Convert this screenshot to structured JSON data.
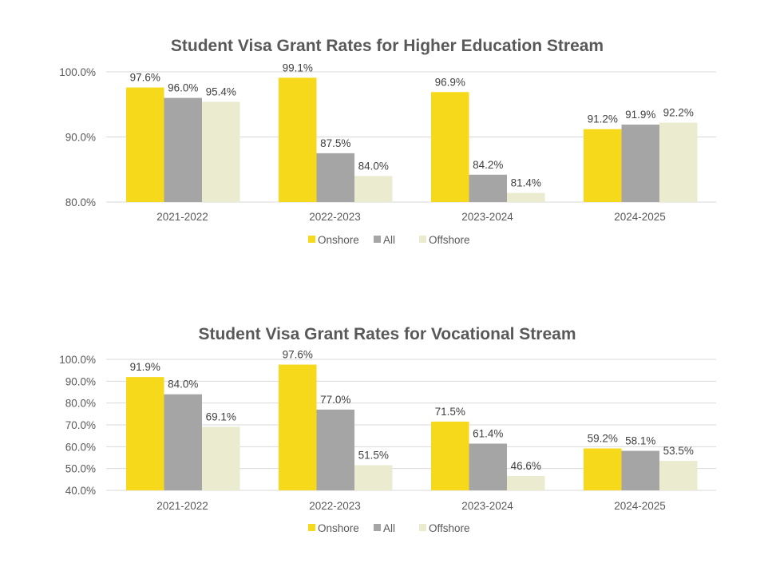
{
  "colors": {
    "Onshore": "#F7D91B",
    "All": "#A5A5A5",
    "Offshore": "#EBEBD0",
    "grid": "#D9D9D9",
    "text": "#595959"
  },
  "chart_data": [
    {
      "type": "bar",
      "title": "Student Visa Grant Rates for Higher Education Stream",
      "categories": [
        "2021-2022",
        "2022-2023",
        "2023-2024",
        "2024-2025"
      ],
      "series": [
        {
          "name": "Onshore",
          "values": [
            97.6,
            99.1,
            96.9,
            91.2
          ]
        },
        {
          "name": "All",
          "values": [
            96.0,
            87.5,
            84.2,
            91.9
          ]
        },
        {
          "name": "Offshore",
          "values": [
            95.4,
            84.0,
            81.4,
            92.2
          ]
        }
      ],
      "ylim": [
        80,
        100
      ],
      "yticks": [
        "80.0%",
        "90.0%",
        "100.0%"
      ],
      "ytick_values": [
        80,
        90,
        100
      ],
      "grid": true,
      "legend": "bottom"
    },
    {
      "type": "bar",
      "title": "Student Visa Grant Rates for Vocational Stream",
      "categories": [
        "2021-2022",
        "2022-2023",
        "2023-2024",
        "2024-2025"
      ],
      "series": [
        {
          "name": "Onshore",
          "values": [
            91.9,
            97.6,
            71.5,
            59.2
          ]
        },
        {
          "name": "All",
          "values": [
            84.0,
            77.0,
            61.4,
            58.1
          ]
        },
        {
          "name": "Offshore",
          "values": [
            69.1,
            51.5,
            46.6,
            53.5
          ]
        }
      ],
      "ylim": [
        40,
        100
      ],
      "yticks": [
        "40.0%",
        "50.0%",
        "60.0%",
        "70.0%",
        "80.0%",
        "90.0%",
        "100.0%"
      ],
      "ytick_values": [
        40,
        50,
        60,
        70,
        80,
        90,
        100
      ],
      "grid": true,
      "legend": "bottom"
    }
  ]
}
